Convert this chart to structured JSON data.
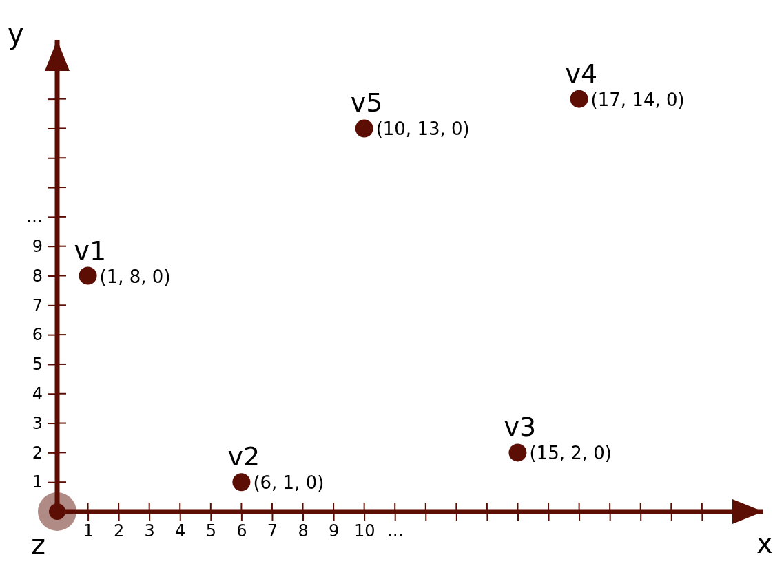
{
  "chart_data": {
    "type": "scatter",
    "xlabel": "x",
    "ylabel": "y",
    "x": [
      1,
      6,
      15,
      17,
      10
    ],
    "series": [
      {
        "color": "#5c0e04",
        "values": [
          8,
          1,
          2,
          14,
          13
        ],
        "value_labels": [
          "(1, 8, 0)",
          "(6, 1, 0)",
          "(15, 2, 0)",
          "(17, 14, 0)",
          "(10, 13, 0)"
        ]
      }
    ],
    "xlim": [
      0,
      23
    ],
    "ylim": [
      0,
      16
    ],
    "xticks": [
      1,
      2,
      3,
      4,
      5,
      6,
      7,
      8,
      9,
      10,
      {
        "value": 11,
        "label": "…"
      },
      {
        "value": 12,
        "label": null
      },
      {
        "value": 13,
        "label": null
      },
      {
        "value": 14,
        "label": null
      },
      {
        "value": 15,
        "label": null
      },
      {
        "value": 16,
        "label": null
      },
      {
        "value": 17,
        "label": null
      },
      {
        "value": 18,
        "label": null
      },
      {
        "value": 19,
        "label": null
      },
      {
        "value": 20,
        "label": null
      },
      {
        "value": 21,
        "label": null
      }
    ],
    "yticks": [
      1,
      2,
      3,
      4,
      5,
      6,
      7,
      8,
      9,
      {
        "value": 10,
        "label": "…"
      },
      {
        "value": 11,
        "label": null
      },
      {
        "value": 12,
        "label": null
      },
      {
        "value": 13,
        "label": null
      },
      {
        "value": 14,
        "label": null
      },
      {
        "value": 15,
        "label": null
      }
    ],
    "annotations": [
      {
        "text": "v1",
        "x": 1,
        "y": 8
      },
      {
        "text": "v2",
        "x": 6,
        "y": 1
      },
      {
        "text": "v3",
        "x": 15,
        "y": 2
      },
      {
        "text": "v4",
        "x": 17,
        "y": 14
      },
      {
        "text": "v5",
        "x": 10,
        "y": 13
      },
      {
        "text": "z",
        "x": 0,
        "y": 0
      }
    ],
    "marker": "circle"
  }
}
